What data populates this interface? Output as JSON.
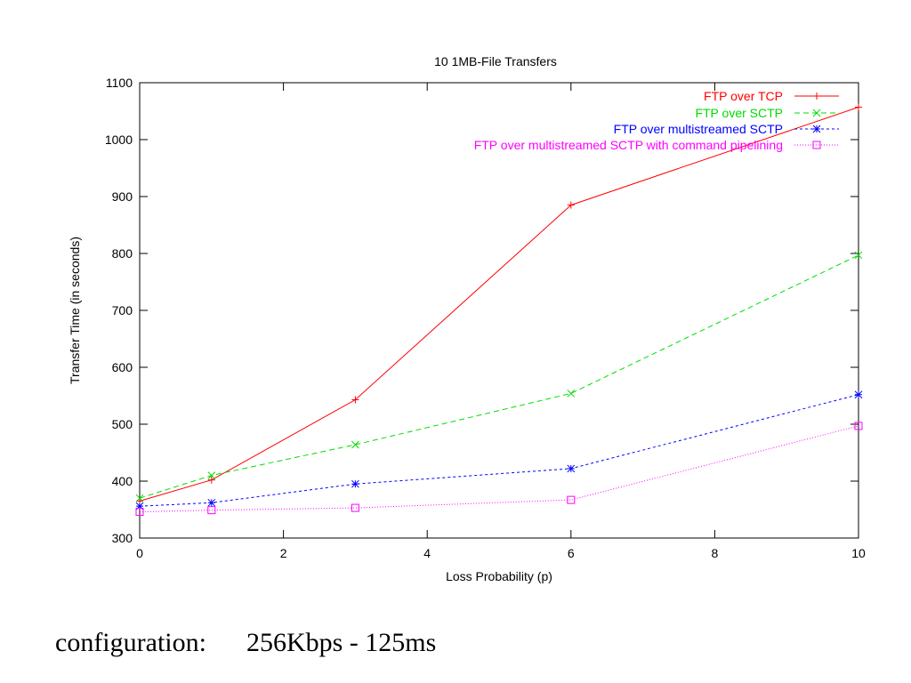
{
  "chart_data": {
    "type": "line",
    "title": "10  1MB-File  Transfers",
    "xlabel": "Loss Probability (p)",
    "ylabel": "Transfer Time (in seconds)",
    "xlim": [
      0,
      10
    ],
    "ylim": [
      300,
      1100
    ],
    "xticks": [
      0,
      2,
      4,
      6,
      8,
      10
    ],
    "yticks": [
      300,
      400,
      500,
      600,
      700,
      800,
      900,
      1000,
      1100
    ],
    "grid": false,
    "legend_position": "top-right",
    "series": [
      {
        "name": "FTP over TCP",
        "color": "#ff0000",
        "dash": "",
        "marker": "plus",
        "x": [
          0,
          1,
          3,
          6,
          10
        ],
        "y": [
          365,
          402,
          543,
          885,
          1057
        ]
      },
      {
        "name": "FTP over SCTP",
        "color": "#00dd00",
        "dash": "6,4",
        "marker": "cross",
        "x": [
          0,
          1,
          3,
          6,
          10
        ],
        "y": [
          370,
          410,
          464,
          554,
          797
        ]
      },
      {
        "name": "FTP over multistreamed SCTP",
        "color": "#0000ff",
        "dash": "3,3",
        "marker": "star",
        "x": [
          0,
          1,
          3,
          6,
          10
        ],
        "y": [
          356,
          362,
          395,
          422,
          552
        ]
      },
      {
        "name": "FTP over multistreamed SCTP with command pipelining",
        "color": "#ff00ff",
        "dash": "1,2",
        "marker": "square",
        "x": [
          0,
          1,
          3,
          6,
          10
        ],
        "y": [
          346,
          349,
          353,
          367,
          497
        ]
      }
    ]
  },
  "caption": {
    "label": "configuration:",
    "value": "256Kbps - 125ms"
  }
}
